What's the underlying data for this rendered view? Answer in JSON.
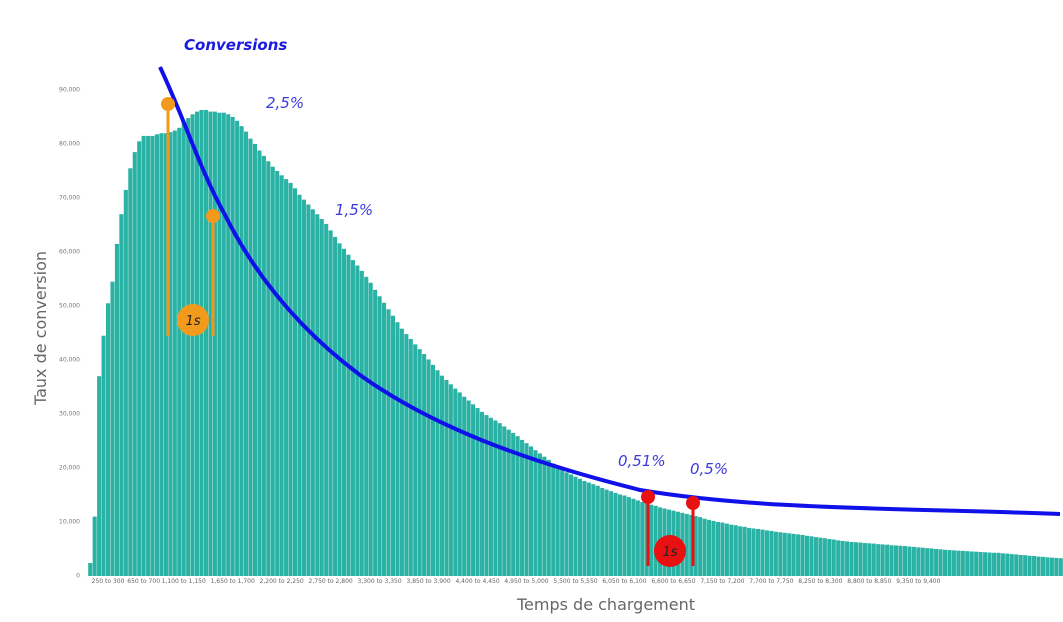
{
  "chart_data": {
    "type": "bar",
    "title": "Conversions",
    "x_label": "Temps de chargement",
    "y_label": "Taux de conversion",
    "annotations": [
      "2,5%",
      "1,5%",
      "0,51%",
      "0,5%",
      "1s",
      "1s"
    ],
    "color": "#2ab3a4",
    "categories": [
      null,
      null,
      null,
      null,
      "250 to 300",
      null,
      null,
      null,
      null,
      null,
      null,
      null,
      "650 to 700",
      null,
      null,
      null,
      null,
      null,
      null,
      null,
      null,
      "1,100 to 1,150",
      null,
      null,
      null,
      null,
      null,
      null,
      null,
      null,
      null,
      null,
      "1,650 to 1,700",
      null,
      null,
      null,
      null,
      null,
      null,
      null,
      null,
      null,
      null,
      "2,200 to 2,250",
      null,
      null,
      null,
      null,
      null,
      null,
      null,
      null,
      null,
      null,
      "2,750 to 2,800",
      null,
      null,
      null,
      null,
      null,
      null,
      null,
      null,
      null,
      null,
      "3,300 to 3,350",
      null,
      null,
      null,
      null,
      null,
      null,
      null,
      null,
      null,
      null,
      "3,850 to 3,900",
      null,
      null,
      null,
      null,
      null,
      null,
      null,
      null,
      null,
      null,
      "4,400 to 4,450",
      null,
      null,
      null,
      null,
      null,
      null,
      null,
      null,
      null,
      null,
      "4,950 to 5,000",
      null,
      null,
      null,
      null,
      null,
      null,
      null,
      null,
      null,
      null,
      "5,500 to 5,550",
      null,
      null,
      null,
      null,
      null,
      null,
      null,
      null,
      null,
      null,
      "6,050 to 6,100",
      null,
      null,
      null,
      null,
      null,
      null,
      null,
      null,
      null,
      null,
      "6,600 to 6,650",
      null,
      null,
      null,
      null,
      null,
      null,
      null,
      null,
      null,
      null,
      "7,150 to 7,200",
      null,
      null,
      null,
      null,
      null,
      null,
      null,
      null,
      null,
      null,
      "7,700 to 7,750",
      null,
      null,
      null,
      null,
      null,
      null,
      null,
      null,
      null,
      null,
      "8,250 to 8,300",
      null,
      null,
      null,
      null,
      null,
      null,
      null,
      null,
      null,
      null,
      "8,800 to 8,850",
      null,
      null,
      null,
      null,
      null,
      null,
      null,
      null,
      null,
      null,
      "9,350 to 9,400",
      null,
      null,
      null,
      null,
      null,
      null,
      null,
      null,
      null,
      null,
      null,
      null,
      null,
      null,
      null,
      null,
      null,
      null,
      null,
      null,
      null,
      null,
      null,
      null,
      null,
      null,
      null,
      null,
      null,
      null,
      null,
      null
    ],
    "values": [
      2400,
      11000,
      37000,
      44500,
      50500,
      54500,
      61500,
      67000,
      71500,
      75500,
      78500,
      80500,
      81500,
      81500,
      81500,
      81800,
      82000,
      82000,
      82200,
      82500,
      83000,
      84000,
      84800,
      85500,
      86000,
      86300,
      86300,
      86000,
      86000,
      85800,
      85800,
      85500,
      85000,
      84300,
      83300,
      82300,
      81000,
      80000,
      78800,
      77800,
      76800,
      75800,
      75000,
      74200,
      73500,
      72800,
      71800,
      70600,
      69700,
      68800,
      67900,
      67000,
      66100,
      65200,
      64000,
      62800,
      61600,
      60600,
      59500,
      58500,
      57500,
      56500,
      55400,
      54300,
      53000,
      51800,
      50600,
      49400,
      48200,
      47000,
      45800,
      44800,
      43900,
      42900,
      42000,
      41100,
      40100,
      39100,
      38100,
      37100,
      36300,
      35500,
      34700,
      34000,
      33200,
      32500,
      31800,
      31100,
      30400,
      29800,
      29300,
      28800,
      28300,
      27700,
      27100,
      26500,
      25900,
      25200,
      24600,
      24000,
      23300,
      22700,
      22100,
      21500,
      20800,
      20200,
      19600,
      19200,
      18800,
      18400,
      18000,
      17600,
      17300,
      17000,
      16700,
      16300,
      16000,
      15700,
      15400,
      15100,
      14900,
      14600,
      14300,
      14000,
      13700,
      13500,
      13200,
      13000,
      12700,
      12500,
      12300,
      12100,
      11900,
      11700,
      11500,
      11300,
      11100,
      10900,
      10600,
      10400,
      10200,
      10000,
      9900,
      9700,
      9500,
      9400,
      9200,
      9100,
      8900,
      8800,
      8700,
      8600,
      8450,
      8350,
      8200,
      8100,
      8000,
      7900,
      7800,
      7700,
      7600,
      7450,
      7350,
      7200,
      7100,
      7000,
      6850,
      6750,
      6600,
      6500,
      6400,
      6300,
      6250,
      6200,
      6100,
      6050,
      6000,
      5900,
      5850,
      5800,
      5700,
      5650,
      5600,
      5550,
      5450,
      5400,
      5300,
      5250,
      5150,
      5100,
      5000,
      4950,
      4850,
      4800,
      4750,
      4700,
      4650,
      4600,
      4550,
      4500,
      4450,
      4400,
      4350,
      4300,
      4300,
      4200,
      4150,
      4050,
      4000,
      3900,
      3850,
      3750,
      3700,
      3600,
      3550,
      3450,
      3400,
      3350,
      3300
    ],
    "ylim": [
      0,
      90000
    ],
    "yticks": [
      0,
      {
        "value": 10000,
        "label": "10,000"
      },
      {
        "value": 20000,
        "label": "20,000"
      },
      {
        "value": 30000,
        "label": "30,000"
      },
      {
        "value": 40000,
        "label": "40,000"
      },
      {
        "value": 50000,
        "label": "50,000"
      },
      {
        "value": 60000,
        "label": "60,000"
      },
      {
        "value": 70000,
        "label": "70,000"
      },
      {
        "value": 80000,
        "label": "80,000"
      },
      {
        "value": 90000,
        "label": "90,000"
      }
    ]
  }
}
